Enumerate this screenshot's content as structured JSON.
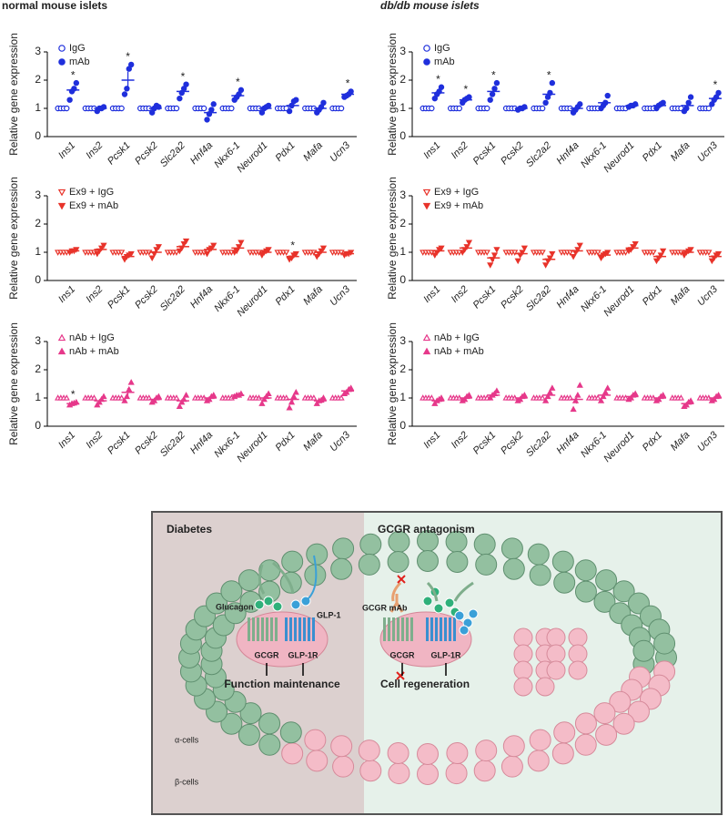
{
  "column_titles": [
    "normal mouse islets",
    "db/db mouse islets"
  ],
  "chart_data": [
    {
      "type": "dot",
      "y_label": "Relative gene expression",
      "legend": "upper-left",
      "categories": [
        "Ins1",
        "Ins2",
        "Pcsk1",
        "Pcsk2",
        "Slc2a2",
        "Hnf4a",
        "Nkx6-1",
        "Neurod1",
        "Pdx1",
        "Mafa",
        "Ucn3"
      ],
      "ylim": [
        0,
        3
      ],
      "yticks": [
        0,
        1,
        2,
        3
      ],
      "series": [
        {
          "name": "IgG",
          "color": "#1f2fdc",
          "marker": "circle",
          "filled": false,
          "values": [
            1,
            1,
            1,
            1,
            1,
            1,
            1,
            1,
            1,
            1,
            1
          ]
        },
        {
          "name": "mAb",
          "color": "#1f2fdc",
          "marker": "circle",
          "filled": true,
          "values": [
            1.65,
            1.0,
            2.0,
            1.0,
            1.6,
            0.85,
            1.45,
            1.0,
            1.1,
            1.0,
            1.5
          ],
          "errors": [
            0.1,
            0.05,
            0.3,
            0.08,
            0.12,
            0.1,
            0.08,
            0.06,
            0.1,
            0.08,
            0.05
          ],
          "points": [
            [
              1.3,
              1.6,
              1.7,
              1.9
            ],
            [
              0.9,
              1.0,
              1.0,
              1.05
            ],
            [
              1.5,
              1.7,
              2.4,
              2.55
            ],
            [
              0.85,
              1.0,
              1.1,
              1.05
            ],
            [
              1.35,
              1.55,
              1.7,
              1.85
            ],
            [
              0.6,
              0.8,
              0.95,
              1.15
            ],
            [
              1.3,
              1.4,
              1.5,
              1.65
            ],
            [
              0.85,
              1.0,
              1.05,
              1.1
            ],
            [
              0.9,
              1.1,
              1.25,
              1.3
            ],
            [
              0.85,
              0.95,
              1.05,
              1.2
            ],
            [
              1.4,
              1.45,
              1.5,
              1.6
            ]
          ]
        }
      ],
      "significance": [
        "*",
        null,
        "*",
        null,
        "*",
        null,
        "*",
        null,
        null,
        null,
        "*"
      ]
    },
    {
      "type": "dot",
      "y_label": "Relative gene expression",
      "legend": "upper-left",
      "categories": [
        "Ins1",
        "Ins2",
        "Pcsk1",
        "Pcsk2",
        "Slc2a2",
        "Hnf4a",
        "Nkx6-1",
        "Neurod1",
        "Pdx1",
        "Mafa",
        "Ucn3"
      ],
      "ylim": [
        0,
        3
      ],
      "yticks": [
        0,
        1,
        2,
        3
      ],
      "series": [
        {
          "name": "IgG",
          "color": "#1f2fdc",
          "marker": "circle",
          "filled": false,
          "values": [
            1,
            1,
            1,
            1,
            1,
            1,
            1,
            1,
            1,
            1,
            1
          ]
        },
        {
          "name": "mAb",
          "color": "#1f2fdc",
          "marker": "circle",
          "filled": true,
          "values": [
            1.55,
            1.3,
            1.6,
            1.0,
            1.5,
            1.0,
            1.2,
            1.1,
            1.1,
            1.1,
            1.35
          ],
          "errors": [
            0.1,
            0.05,
            0.15,
            0.03,
            0.15,
            0.08,
            0.1,
            0.03,
            0.05,
            0.1,
            0.1
          ],
          "points": [
            [
              1.35,
              1.5,
              1.6,
              1.75
            ],
            [
              1.2,
              1.3,
              1.35,
              1.4
            ],
            [
              1.3,
              1.5,
              1.7,
              1.9
            ],
            [
              0.95,
              1.0,
              1.0,
              1.05
            ],
            [
              1.2,
              1.4,
              1.55,
              1.9
            ],
            [
              0.85,
              0.95,
              1.05,
              1.15
            ],
            [
              1.0,
              1.1,
              1.2,
              1.45
            ],
            [
              1.05,
              1.1,
              1.1,
              1.15
            ],
            [
              1.0,
              1.1,
              1.15,
              1.2
            ],
            [
              0.9,
              1.0,
              1.2,
              1.4
            ],
            [
              1.15,
              1.3,
              1.4,
              1.55
            ]
          ]
        }
      ],
      "significance": [
        "*",
        "*",
        "*",
        null,
        "*",
        null,
        null,
        null,
        null,
        null,
        "*"
      ]
    },
    {
      "type": "dot",
      "y_label": "Relative gene expression",
      "legend": "upper-left",
      "categories": [
        "Ins1",
        "Ins2",
        "Pcsk1",
        "Pcsk2",
        "Slc2a2",
        "Hnf4a",
        "Nkx6-1",
        "Neurod1",
        "Pdx1",
        "Mafa",
        "Ucn3"
      ],
      "ylim": [
        0,
        3
      ],
      "yticks": [
        0,
        1,
        2,
        3
      ],
      "series": [
        {
          "name": "Ex9 + IgG",
          "color": "#e8332a",
          "marker": "triangle-down",
          "filled": false,
          "values": [
            1,
            1,
            1,
            1,
            1,
            1,
            1,
            1,
            1,
            1,
            1
          ]
        },
        {
          "name": "Ex9 + mAb",
          "color": "#e8332a",
          "marker": "triangle-down",
          "filled": true,
          "values": [
            1.05,
            1.1,
            0.85,
            1.0,
            1.2,
            1.1,
            1.15,
            1.0,
            0.85,
            1.0,
            0.95
          ],
          "errors": [
            0.03,
            0.08,
            0.05,
            0.1,
            0.08,
            0.08,
            0.1,
            0.05,
            0.05,
            0.08,
            0.02
          ],
          "points": [
            [
              1.0,
              1.05,
              1.05,
              1.1
            ],
            [
              0.95,
              1.05,
              1.15,
              1.25
            ],
            [
              0.75,
              0.85,
              0.9,
              0.95
            ],
            [
              0.8,
              0.95,
              1.1,
              1.2
            ],
            [
              1.05,
              1.15,
              1.3,
              1.4
            ],
            [
              0.95,
              1.1,
              1.15,
              1.25
            ],
            [
              1.0,
              1.05,
              1.2,
              1.35
            ],
            [
              0.9,
              1.0,
              1.05,
              1.1
            ],
            [
              0.75,
              0.8,
              0.9,
              0.95
            ],
            [
              0.85,
              0.95,
              1.05,
              1.15
            ],
            [
              0.9,
              0.95,
              0.95,
              1.0
            ]
          ]
        }
      ],
      "significance": [
        null,
        null,
        null,
        null,
        null,
        null,
        null,
        null,
        "*",
        null,
        null
      ]
    },
    {
      "type": "dot",
      "y_label": "Relative gene expression",
      "legend": "upper-left",
      "categories": [
        "Ins1",
        "Ins2",
        "Pcsk1",
        "Pcsk2",
        "Slc2a2",
        "Hnf4a",
        "Nkx6-1",
        "Neurod1",
        "Pdx1",
        "Mafa",
        "Ucn3"
      ],
      "ylim": [
        0,
        3
      ],
      "yticks": [
        0,
        1,
        2,
        3
      ],
      "series": [
        {
          "name": "Ex9 + IgG",
          "color": "#e8332a",
          "marker": "triangle-down",
          "filled": false,
          "values": [
            1,
            1,
            1,
            1,
            1,
            1,
            1,
            1,
            1,
            1,
            1
          ]
        },
        {
          "name": "Ex9 + mAb",
          "color": "#e8332a",
          "marker": "triangle-down",
          "filled": true,
          "values": [
            1.05,
            1.15,
            0.8,
            0.95,
            0.75,
            1.05,
            0.9,
            1.15,
            0.85,
            1.0,
            0.85
          ],
          "errors": [
            0.05,
            0.08,
            0.12,
            0.1,
            0.1,
            0.1,
            0.05,
            0.05,
            0.08,
            0.05,
            0.05
          ],
          "points": [
            [
              0.9,
              1.0,
              1.1,
              1.15
            ],
            [
              1.0,
              1.1,
              1.2,
              1.35
            ],
            [
              0.55,
              0.75,
              0.9,
              1.1
            ],
            [
              0.7,
              0.9,
              1.0,
              1.15
            ],
            [
              0.55,
              0.7,
              0.8,
              0.95
            ],
            [
              0.85,
              1.0,
              1.1,
              1.25
            ],
            [
              0.8,
              0.9,
              0.95,
              1.0
            ],
            [
              1.05,
              1.1,
              1.2,
              1.3
            ],
            [
              0.7,
              0.8,
              0.9,
              1.05
            ],
            [
              0.9,
              1.0,
              1.05,
              1.1
            ],
            [
              0.7,
              0.8,
              0.9,
              0.95
            ]
          ]
        }
      ],
      "significance": [
        null,
        null,
        null,
        null,
        null,
        null,
        null,
        null,
        null,
        null,
        null
      ]
    },
    {
      "type": "dot",
      "y_label": "Relative gene expression",
      "legend": "upper-left",
      "categories": [
        "Ins1",
        "Ins2",
        "Pcsk1",
        "Pcsk2",
        "Slc2a2",
        "Hnf4a",
        "Nkx6-1",
        "Neurod1",
        "Pdx1",
        "Mafa",
        "Ucn3"
      ],
      "ylim": [
        0,
        3
      ],
      "yticks": [
        0,
        1,
        2,
        3
      ],
      "series": [
        {
          "name": "nAb + IgG",
          "color": "#e6388a",
          "marker": "triangle",
          "filled": false,
          "values": [
            1,
            1,
            1,
            1,
            1,
            1,
            1,
            1,
            1,
            1,
            1
          ]
        },
        {
          "name": "nAb + mAb",
          "color": "#e6388a",
          "marker": "triangle",
          "filled": true,
          "values": [
            0.8,
            0.9,
            1.2,
            0.95,
            0.9,
            1.0,
            1.1,
            1.0,
            0.95,
            0.9,
            1.25
          ],
          "errors": [
            0.03,
            0.08,
            0.15,
            0.05,
            0.1,
            0.05,
            0.03,
            0.08,
            0.12,
            0.05,
            0.05
          ],
          "points": [
            [
              0.75,
              0.8,
              0.82,
              0.85
            ],
            [
              0.75,
              0.85,
              0.95,
              1.05
            ],
            [
              0.9,
              1.05,
              1.3,
              1.55
            ],
            [
              0.85,
              0.9,
              1.0,
              1.05
            ],
            [
              0.7,
              0.85,
              0.95,
              1.1
            ],
            [
              0.9,
              0.95,
              1.05,
              1.1
            ],
            [
              1.05,
              1.1,
              1.1,
              1.15
            ],
            [
              0.8,
              0.95,
              1.05,
              1.15
            ],
            [
              0.65,
              0.85,
              1.05,
              1.2
            ],
            [
              0.8,
              0.9,
              0.92,
              1.0
            ],
            [
              1.15,
              1.2,
              1.3,
              1.35
            ]
          ]
        }
      ],
      "significance": [
        "*",
        null,
        null,
        null,
        null,
        null,
        null,
        null,
        null,
        null,
        null
      ]
    },
    {
      "type": "dot",
      "y_label": "Relative gene expression",
      "legend": "upper-left",
      "categories": [
        "Ins1",
        "Ins2",
        "Pcsk1",
        "Pcsk2",
        "Slc2a2",
        "Hnf4a",
        "Nkx6-1",
        "Neurod1",
        "Pdx1",
        "Mafa",
        "Ucn3"
      ],
      "ylim": [
        0,
        3
      ],
      "yticks": [
        0,
        1,
        2,
        3
      ],
      "series": [
        {
          "name": "nAb + IgG",
          "color": "#e6388a",
          "marker": "triangle",
          "filled": false,
          "values": [
            1,
            1,
            1,
            1,
            1,
            1,
            1,
            1,
            1,
            1,
            1
          ]
        },
        {
          "name": "nAb + mAb",
          "color": "#e6388a",
          "marker": "triangle",
          "filled": true,
          "values": [
            0.9,
            1.0,
            1.1,
            1.0,
            1.1,
            0.95,
            1.1,
            1.05,
            1.0,
            0.8,
            1.0
          ],
          "errors": [
            0.05,
            0.05,
            0.05,
            0.05,
            0.1,
            0.15,
            0.1,
            0.05,
            0.05,
            0.05,
            0.05
          ],
          "points": [
            [
              0.8,
              0.9,
              0.95,
              1.0
            ],
            [
              0.9,
              0.95,
              1.05,
              1.1
            ],
            [
              1.0,
              1.1,
              1.15,
              1.25
            ],
            [
              0.9,
              0.95,
              1.05,
              1.1
            ],
            [
              0.9,
              1.05,
              1.2,
              1.35
            ],
            [
              0.6,
              0.9,
              1.1,
              1.45
            ],
            [
              0.9,
              1.05,
              1.2,
              1.35
            ],
            [
              0.95,
              1.0,
              1.1,
              1.15
            ],
            [
              0.9,
              0.95,
              1.05,
              1.1
            ],
            [
              0.7,
              0.75,
              0.85,
              0.9
            ],
            [
              0.9,
              0.95,
              1.05,
              1.1
            ]
          ]
        }
      ],
      "significance": [
        null,
        null,
        null,
        null,
        null,
        null,
        null,
        null,
        null,
        null,
        null
      ]
    }
  ],
  "diagram": {
    "left_title": "Diabetes",
    "right_title": "GCGR antagonism",
    "glucagon": "Glucagon",
    "glp1": "GLP-1",
    "gcgr_left": "GCGR",
    "glp1r_left": "GLP-1R",
    "function": "Function maintenance",
    "gcgr_mab": "GCGR mAb",
    "gcgr_right": "GCGR",
    "glp1r_right": "GLP-1R",
    "regeneration": "Cell regeneration",
    "alpha_cells": "α-cells",
    "beta_cells": "β-cells"
  }
}
